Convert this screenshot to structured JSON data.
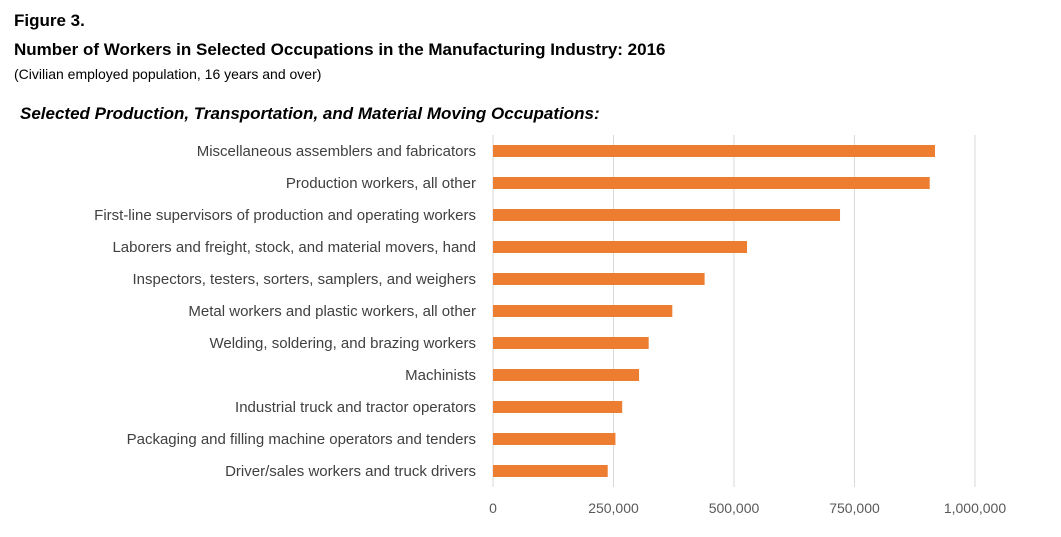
{
  "figure_label": "Figure 3.",
  "title": "Number of Workers in Selected Occupations in the Manufacturing Industry: 2016",
  "subtitle": "(Civilian employed population, 16 years and over)",
  "section_title": "Selected Production, Transportation, and Material Moving Occupations:",
  "chart_data": {
    "type": "bar",
    "orientation": "horizontal",
    "categories": [
      "Miscellaneous assemblers and fabricators",
      "Production workers, all other",
      "First-line supervisors of production and operating workers",
      "Laborers and freight, stock, and material movers, hand",
      "Inspectors, testers, sorters, samplers, and weighers",
      "Metal workers and plastic workers, all other",
      "Welding, soldering, and brazing workers",
      "Machinists",
      "Industrial truck and tractor operators",
      "Packaging and filling machine operators and tenders",
      "Driver/sales workers and truck drivers"
    ],
    "values": [
      917000,
      906000,
      720000,
      527000,
      439000,
      372000,
      323000,
      303000,
      268000,
      254000,
      238000
    ],
    "xlim": [
      0,
      1000000
    ],
    "xticks": [
      0,
      250000,
      500000,
      750000,
      1000000
    ],
    "xtick_labels": [
      "0",
      "250,000",
      "500,000",
      "750,000",
      "1,000,000"
    ],
    "grid": "vertical",
    "bar_color": "#ED7D31",
    "grid_color": "#D9D9D9",
    "legend": "none"
  }
}
